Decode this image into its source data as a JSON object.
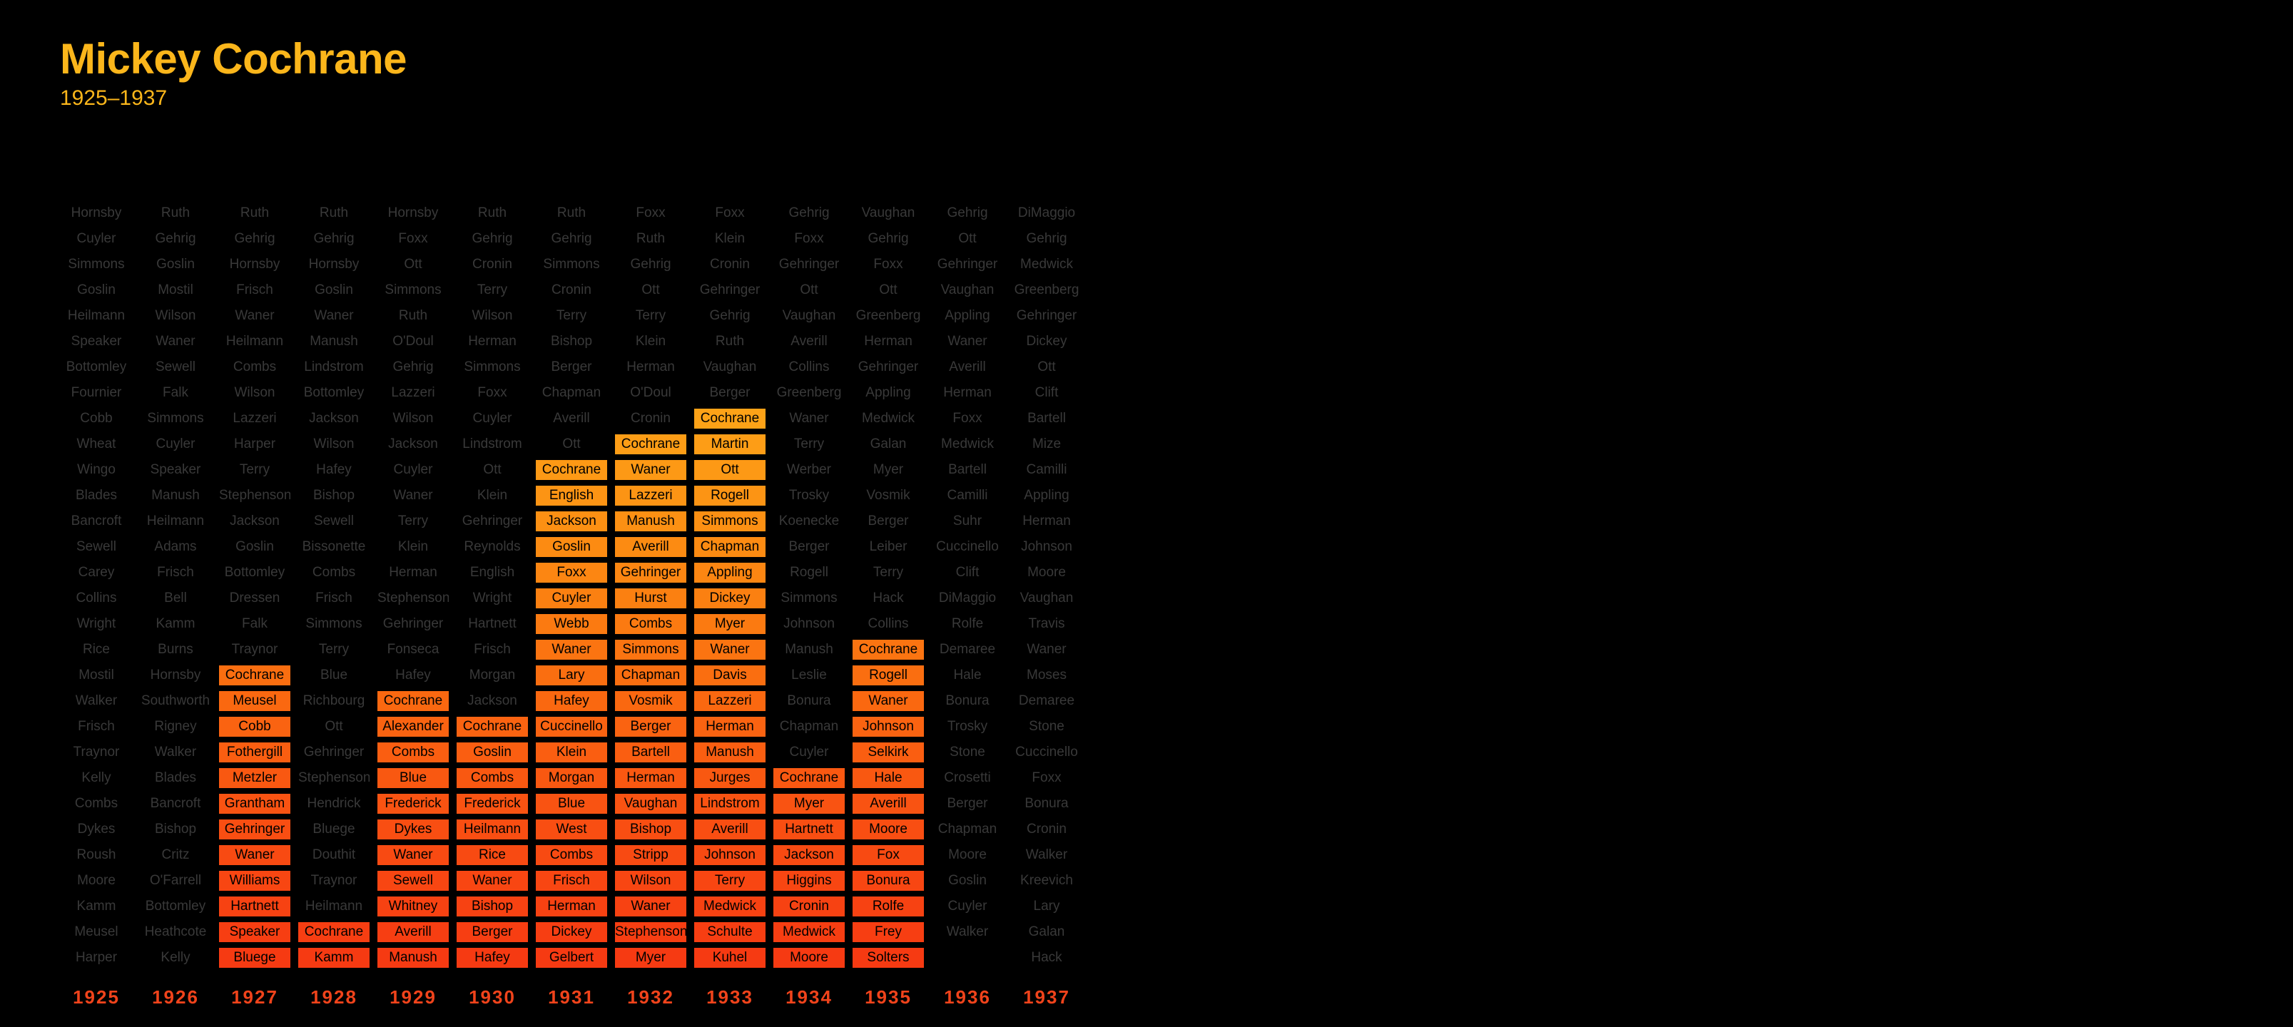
{
  "title": "Mickey Cochrane",
  "subtitle": "1925–1937",
  "colors": {
    "background": "#000000",
    "title": "#fbb61b",
    "dim_text": "#393939",
    "year_label": "#f0431b",
    "highlight_gradient": [
      "#fda217",
      "#fc8a12",
      "#fa6b10",
      "#f94f12",
      "#f63a12"
    ]
  },
  "chart_data": {
    "type": "table",
    "highlight_player": "Cochrane",
    "years": [
      "1925",
      "1926",
      "1927",
      "1928",
      "1929",
      "1930",
      "1931",
      "1932",
      "1933",
      "1934",
      "1935",
      "1936",
      "1937"
    ],
    "columns": [
      {
        "year": "1925",
        "highlight_from": null,
        "names": [
          "Hornsby",
          "Cuyler",
          "Simmons",
          "Goslin",
          "Heilmann",
          "Speaker",
          "Bottomley",
          "Fournier",
          "Cobb",
          "Wheat",
          "Wingo",
          "Blades",
          "Bancroft",
          "Sewell",
          "Carey",
          "Collins",
          "Wright",
          "Rice",
          "Mostil",
          "Walker",
          "Frisch",
          "Traynor",
          "Kelly",
          "Combs",
          "Dykes",
          "Roush",
          "Moore",
          "Kamm",
          "Meusel",
          "Harper"
        ]
      },
      {
        "year": "1926",
        "highlight_from": null,
        "names": [
          "Ruth",
          "Gehrig",
          "Goslin",
          "Mostil",
          "Wilson",
          "Waner",
          "Sewell",
          "Falk",
          "Simmons",
          "Cuyler",
          "Speaker",
          "Manush",
          "Heilmann",
          "Adams",
          "Frisch",
          "Bell",
          "Kamm",
          "Burns",
          "Hornsby",
          "Southworth",
          "Rigney",
          "Walker",
          "Blades",
          "Bancroft",
          "Bishop",
          "Critz",
          "O'Farrell",
          "Bottomley",
          "Heathcote",
          "Kelly"
        ]
      },
      {
        "year": "1927",
        "highlight_from": 18,
        "names": [
          "Ruth",
          "Gehrig",
          "Hornsby",
          "Frisch",
          "Waner",
          "Heilmann",
          "Combs",
          "Wilson",
          "Lazzeri",
          "Harper",
          "Terry",
          "Stephenson",
          "Jackson",
          "Goslin",
          "Bottomley",
          "Dressen",
          "Falk",
          "Traynor",
          "Cochrane",
          "Meusel",
          "Cobb",
          "Fothergill",
          "Metzler",
          "Grantham",
          "Gehringer",
          "Waner",
          "Williams",
          "Hartnett",
          "Speaker",
          "Bluege"
        ]
      },
      {
        "year": "1928",
        "highlight_from": 28,
        "names": [
          "Ruth",
          "Gehrig",
          "Hornsby",
          "Goslin",
          "Waner",
          "Manush",
          "Lindstrom",
          "Bottomley",
          "Jackson",
          "Wilson",
          "Hafey",
          "Bishop",
          "Sewell",
          "Bissonette",
          "Combs",
          "Frisch",
          "Simmons",
          "Terry",
          "Blue",
          "Richbourg",
          "Ott",
          "Gehringer",
          "Stephenson",
          "Hendrick",
          "Bluege",
          "Douthit",
          "Traynor",
          "Heilmann",
          "Cochrane",
          "Kamm"
        ]
      },
      {
        "year": "1929",
        "highlight_from": 19,
        "names": [
          "Hornsby",
          "Foxx",
          "Ott",
          "Simmons",
          "Ruth",
          "O'Doul",
          "Gehrig",
          "Lazzeri",
          "Wilson",
          "Jackson",
          "Cuyler",
          "Waner",
          "Terry",
          "Klein",
          "Herman",
          "Stephenson",
          "Gehringer",
          "Fonseca",
          "Hafey",
          "Cochrane",
          "Alexander",
          "Combs",
          "Blue",
          "Frederick",
          "Dykes",
          "Waner",
          "Sewell",
          "Whitney",
          "Averill",
          "Manush"
        ]
      },
      {
        "year": "1930",
        "highlight_from": 20,
        "names": [
          "Ruth",
          "Gehrig",
          "Cronin",
          "Terry",
          "Wilson",
          "Herman",
          "Simmons",
          "Foxx",
          "Cuyler",
          "Lindstrom",
          "Ott",
          "Klein",
          "Gehringer",
          "Reynolds",
          "English",
          "Wright",
          "Hartnett",
          "Frisch",
          "Morgan",
          "Jackson",
          "Cochrane",
          "Goslin",
          "Combs",
          "Frederick",
          "Heilmann",
          "Rice",
          "Waner",
          "Bishop",
          "Berger",
          "Hafey"
        ]
      },
      {
        "year": "1931",
        "highlight_from": 10,
        "names": [
          "Ruth",
          "Gehrig",
          "Simmons",
          "Cronin",
          "Terry",
          "Bishop",
          "Berger",
          "Chapman",
          "Averill",
          "Ott",
          "Cochrane",
          "English",
          "Jackson",
          "Goslin",
          "Foxx",
          "Cuyler",
          "Webb",
          "Waner",
          "Lary",
          "Hafey",
          "Cuccinello",
          "Klein",
          "Morgan",
          "Blue",
          "West",
          "Combs",
          "Frisch",
          "Herman",
          "Dickey",
          "Gelbert"
        ]
      },
      {
        "year": "1932",
        "highlight_from": 9,
        "names": [
          "Foxx",
          "Ruth",
          "Gehrig",
          "Ott",
          "Terry",
          "Klein",
          "Herman",
          "O'Doul",
          "Cronin",
          "Cochrane",
          "Waner",
          "Lazzeri",
          "Manush",
          "Averill",
          "Gehringer",
          "Hurst",
          "Combs",
          "Simmons",
          "Chapman",
          "Vosmik",
          "Berger",
          "Bartell",
          "Herman",
          "Vaughan",
          "Bishop",
          "Stripp",
          "Wilson",
          "Waner",
          "Stephenson",
          "Myer"
        ]
      },
      {
        "year": "1933",
        "highlight_from": 8,
        "names": [
          "Foxx",
          "Klein",
          "Cronin",
          "Gehringer",
          "Gehrig",
          "Ruth",
          "Vaughan",
          "Berger",
          "Cochrane",
          "Martin",
          "Ott",
          "Rogell",
          "Simmons",
          "Chapman",
          "Appling",
          "Dickey",
          "Myer",
          "Waner",
          "Davis",
          "Lazzeri",
          "Herman",
          "Manush",
          "Jurges",
          "Lindstrom",
          "Averill",
          "Johnson",
          "Terry",
          "Medwick",
          "Schulte",
          "Kuhel"
        ]
      },
      {
        "year": "1934",
        "highlight_from": 22,
        "names": [
          "Gehrig",
          "Foxx",
          "Gehringer",
          "Ott",
          "Vaughan",
          "Averill",
          "Collins",
          "Greenberg",
          "Waner",
          "Terry",
          "Werber",
          "Trosky",
          "Koenecke",
          "Berger",
          "Rogell",
          "Simmons",
          "Johnson",
          "Manush",
          "Leslie",
          "Bonura",
          "Chapman",
          "Cuyler",
          "Cochrane",
          "Myer",
          "Hartnett",
          "Jackson",
          "Higgins",
          "Cronin",
          "Medwick",
          "Moore"
        ]
      },
      {
        "year": "1935",
        "highlight_from": 17,
        "names": [
          "Vaughan",
          "Gehrig",
          "Foxx",
          "Ott",
          "Greenberg",
          "Herman",
          "Gehringer",
          "Appling",
          "Medwick",
          "Galan",
          "Myer",
          "Vosmik",
          "Berger",
          "Leiber",
          "Terry",
          "Hack",
          "Collins",
          "Cochrane",
          "Rogell",
          "Waner",
          "Johnson",
          "Selkirk",
          "Hale",
          "Averill",
          "Moore",
          "Fox",
          "Bonura",
          "Rolfe",
          "Frey",
          "Solters"
        ]
      },
      {
        "year": "1936",
        "highlight_from": null,
        "names": [
          "Gehrig",
          "Ott",
          "Gehringer",
          "Vaughan",
          "Appling",
          "Waner",
          "Averill",
          "Herman",
          "Foxx",
          "Medwick",
          "Bartell",
          "Camilli",
          "Suhr",
          "Cuccinello",
          "Clift",
          "DiMaggio",
          "Rolfe",
          "Demaree",
          "Hale",
          "Bonura",
          "Trosky",
          "Stone",
          "Crosetti",
          "Berger",
          "Chapman",
          "Moore",
          "Goslin",
          "Cuyler",
          "Walker"
        ]
      },
      {
        "year": "1937",
        "highlight_from": null,
        "names": [
          "DiMaggio",
          "Gehrig",
          "Medwick",
          "Greenberg",
          "Gehringer",
          "Dickey",
          "Ott",
          "Clift",
          "Bartell",
          "Mize",
          "Camilli",
          "Appling",
          "Herman",
          "Johnson",
          "Moore",
          "Vaughan",
          "Travis",
          "Waner",
          "Moses",
          "Demaree",
          "Stone",
          "Cuccinello",
          "Foxx",
          "Bonura",
          "Cronin",
          "Walker",
          "Kreevich",
          "Lary",
          "Galan",
          "Hack"
        ]
      }
    ]
  }
}
